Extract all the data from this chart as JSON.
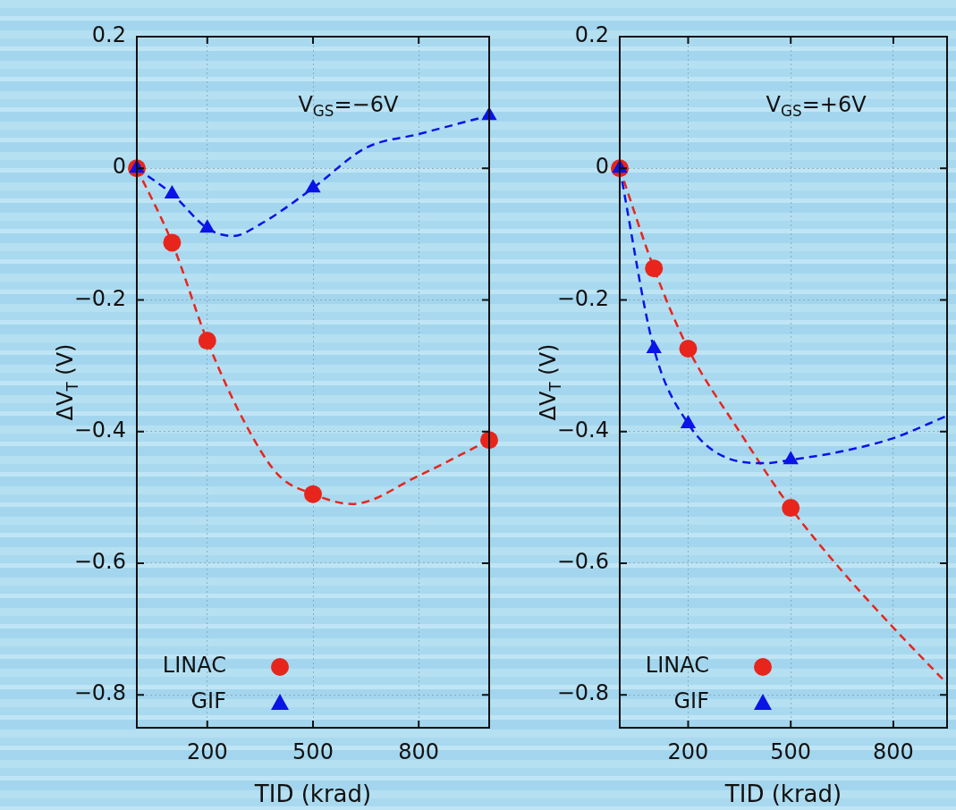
{
  "chart_data": [
    {
      "type": "line",
      "ylabel": "ΔV$_{T}$ (V)",
      "xlabel": "TID (krad)",
      "annotations": [
        "V$_{GS}$=−6V"
      ],
      "xlim": [
        0,
        1000
      ],
      "xticks": [
        200,
        500,
        800
      ],
      "ylim": [
        -0.85,
        0.2
      ],
      "yticks": [
        0.2,
        0,
        -0.2,
        -0.4,
        -0.6,
        -0.8
      ],
      "grid": true,
      "legend": "bottom left",
      "series": [
        {
          "type": "line",
          "color": "#e8251c",
          "line_style": "dashed",
          "marker": "none",
          "x": [
            0,
            100,
            200,
            300,
            400,
            500,
            611,
            800,
            1000
          ],
          "values": [
            0,
            -0.113,
            -0.262,
            -0.38,
            -0.465,
            -0.495,
            -0.51,
            -0.467,
            -0.413
          ]
        },
        {
          "type": "line",
          "color": "#0a14e6",
          "line_style": "dashed",
          "marker": "none",
          "x": [
            0,
            100,
            200,
            272,
            350,
            500,
            650,
            800,
            1000
          ],
          "values": [
            0,
            -0.039,
            -0.091,
            -0.103,
            -0.085,
            -0.03,
            0.031,
            0.052,
            0.08
          ]
        },
        {
          "name": "LINAC",
          "type": "scatter",
          "color": "#e8251c",
          "marker": "circle",
          "x": [
            0,
            100,
            200,
            500,
            1000
          ],
          "values": [
            0,
            -0.113,
            -0.262,
            -0.495,
            -0.413
          ]
        },
        {
          "name": "GIF",
          "type": "scatter",
          "color": "#0a14e6",
          "marker": "triangle",
          "x": [
            0,
            100,
            200,
            500,
            1000
          ],
          "values": [
            0,
            -0.039,
            -0.091,
            -0.03,
            0.08
          ]
        }
      ]
    },
    {
      "type": "line",
      "ylabel": "ΔV$_{T}$ (V)",
      "xlabel": "TID (krad)",
      "annotations": [
        "V$_{GS}$=+6V"
      ],
      "xlim": [
        0,
        957
      ],
      "xticks": [
        200,
        500,
        800
      ],
      "ylim": [
        -0.85,
        0.2
      ],
      "yticks": [
        0.2,
        0,
        -0.2,
        -0.4,
        -0.6,
        -0.8
      ],
      "grid": true,
      "legend": "bottom left",
      "series": [
        {
          "type": "line",
          "color": "#e8251c",
          "line_style": "dashed",
          "marker": "none",
          "x": [
            0,
            100,
            200,
            350,
            500,
            650,
            800,
            957
          ],
          "values": [
            0,
            -0.152,
            -0.274,
            -0.4,
            -0.516,
            -0.612,
            -0.698,
            -0.783
          ]
        },
        {
          "type": "line",
          "color": "#0a14e6",
          "line_style": "dashed",
          "marker": "none",
          "x": [
            0,
            100,
            200,
            300,
            425,
            500,
            650,
            800,
            957
          ],
          "values": [
            0,
            -0.274,
            -0.388,
            -0.437,
            -0.448,
            -0.443,
            -0.43,
            -0.41,
            -0.376
          ]
        },
        {
          "name": "LINAC",
          "type": "scatter",
          "color": "#e8251c",
          "marker": "circle",
          "x": [
            0,
            100,
            200,
            500
          ],
          "values": [
            0,
            -0.152,
            -0.274,
            -0.516
          ]
        },
        {
          "name": "GIF",
          "type": "scatter",
          "color": "#0a14e6",
          "marker": "triangle",
          "x": [
            0,
            100,
            200,
            500
          ],
          "values": [
            0,
            -0.274,
            -0.388,
            -0.443
          ]
        }
      ]
    }
  ]
}
